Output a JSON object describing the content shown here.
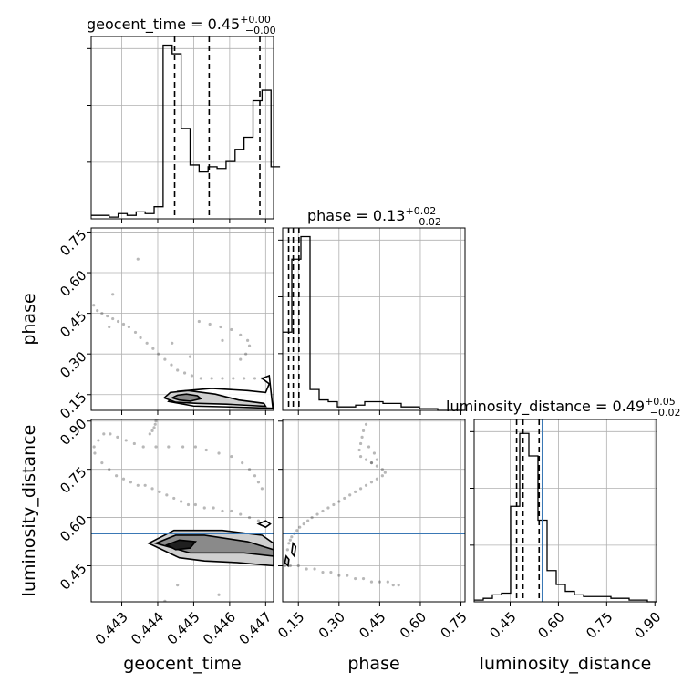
{
  "chart_data": {
    "type": "corner",
    "parameters": [
      "geocent_time",
      "phase",
      "luminosity_distance"
    ],
    "titles": [
      {
        "name": "geocent_time",
        "value": "0.45",
        "plus": "+0.00",
        "minus": "−0.00"
      },
      {
        "name": "phase",
        "value": "0.13",
        "plus": "+0.02",
        "minus": "−0.02"
      },
      {
        "name": "luminosity_distance",
        "value": "0.49",
        "plus": "+0.05",
        "minus": "−0.02"
      }
    ],
    "axis_labels": {
      "geocent_time": "geocent_time",
      "phase": "phase",
      "luminosity_distance": "luminosity_distance"
    },
    "ranges": {
      "geocent_time": [
        0.44215,
        0.44722
      ],
      "phase": [
        0.092,
        0.765
      ],
      "luminosity_distance": [
        0.338,
        0.905
      ]
    },
    "ticks": {
      "geocent_time": [
        "0.443",
        "0.444",
        "0.445",
        "0.446",
        "0.447"
      ],
      "phase": [
        "0.15",
        "0.30",
        "0.45",
        "0.60",
        "0.75"
      ],
      "luminosity_distance": [
        "0.45",
        "0.60",
        "0.75",
        "0.90"
      ]
    },
    "grid": true,
    "truth": {
      "luminosity_distance": 0.55
    },
    "histograms": {
      "geocent_time": {
        "edges": [
          0.44215,
          0.4474
        ],
        "counts": [
          0.02,
          0.02,
          0.01,
          0.03,
          0.02,
          0.04,
          0.03,
          0.07,
          1.0,
          0.95,
          0.52,
          0.31,
          0.27,
          0.3,
          0.29,
          0.33,
          0.4,
          0.47,
          0.68,
          0.74,
          0.3
        ],
        "quantile_lines": [
          0.44447,
          0.44543,
          0.44684
        ]
      },
      "phase": {
        "edges": [
          0.092,
          0.765
        ],
        "counts": [
          0.45,
          0.87,
          1.0,
          0.12,
          0.06,
          0.05,
          0.02,
          0.02,
          0.03,
          0.05,
          0.05,
          0.04,
          0.04,
          0.02,
          0.02,
          0.01,
          0.01,
          0.0,
          0.0,
          0.0
        ],
        "quantile_lines": [
          0.114,
          0.131,
          0.152
        ]
      },
      "luminosity_distance": {
        "edges": [
          0.338,
          0.905
        ],
        "counts": [
          0.01,
          0.02,
          0.04,
          0.05,
          0.55,
          0.97,
          0.84,
          0.47,
          0.18,
          0.1,
          0.06,
          0.04,
          0.03,
          0.03,
          0.03,
          0.02,
          0.02,
          0.01,
          0.01,
          0.0
        ],
        "quantile_lines": [
          0.47,
          0.49,
          0.54
        ]
      }
    },
    "samples": {
      "phase_vs_geocent_time": [
        [
          0.44222,
          0.48
        ],
        [
          0.44232,
          0.46
        ],
        [
          0.44245,
          0.45
        ],
        [
          0.4426,
          0.44
        ],
        [
          0.44275,
          0.43
        ],
        [
          0.4429,
          0.42
        ],
        [
          0.44305,
          0.41
        ],
        [
          0.4432,
          0.4
        ],
        [
          0.44338,
          0.38
        ],
        [
          0.44352,
          0.36
        ],
        [
          0.4437,
          0.34
        ],
        [
          0.44387,
          0.32
        ],
        [
          0.44402,
          0.3
        ],
        [
          0.4442,
          0.28
        ],
        [
          0.44438,
          0.26
        ],
        [
          0.44455,
          0.24
        ],
        [
          0.44475,
          0.23
        ],
        [
          0.44495,
          0.22
        ],
        [
          0.4452,
          0.21
        ],
        [
          0.4455,
          0.21
        ],
        [
          0.4458,
          0.21
        ],
        [
          0.4461,
          0.21
        ],
        [
          0.4464,
          0.21
        ],
        [
          0.4467,
          0.21
        ],
        [
          0.4469,
          0.21
        ],
        [
          0.44515,
          0.42
        ],
        [
          0.44545,
          0.41
        ],
        [
          0.44575,
          0.4
        ],
        [
          0.44605,
          0.39
        ],
        [
          0.4463,
          0.37
        ],
        [
          0.4465,
          0.35
        ],
        [
          0.44655,
          0.33
        ],
        [
          0.44645,
          0.3
        ],
        [
          0.4463,
          0.28
        ],
        [
          0.4458,
          0.35
        ],
        [
          0.44275,
          0.52
        ],
        [
          0.44345,
          0.65
        ],
        [
          0.44265,
          0.4
        ],
        [
          0.4444,
          0.34
        ],
        [
          0.4449,
          0.29
        ]
      ],
      "luminosity_distance_vs_geocent_time": [
        [
          0.44225,
          0.8
        ],
        [
          0.44245,
          0.77
        ],
        [
          0.44265,
          0.75
        ],
        [
          0.44285,
          0.73
        ],
        [
          0.44305,
          0.72
        ],
        [
          0.44325,
          0.71
        ],
        [
          0.44345,
          0.7
        ],
        [
          0.44365,
          0.7
        ],
        [
          0.44385,
          0.69
        ],
        [
          0.44405,
          0.68
        ],
        [
          0.44425,
          0.67
        ],
        [
          0.44445,
          0.66
        ],
        [
          0.44465,
          0.65
        ],
        [
          0.44485,
          0.64
        ],
        [
          0.44505,
          0.64
        ],
        [
          0.4453,
          0.63
        ],
        [
          0.44555,
          0.63
        ],
        [
          0.4458,
          0.62
        ],
        [
          0.44605,
          0.62
        ],
        [
          0.4463,
          0.61
        ],
        [
          0.44655,
          0.6
        ],
        [
          0.4468,
          0.59
        ],
        [
          0.447,
          0.58
        ],
        [
          0.44223,
          0.82
        ],
        [
          0.44235,
          0.84
        ],
        [
          0.4425,
          0.86
        ],
        [
          0.44268,
          0.86
        ],
        [
          0.44288,
          0.85
        ],
        [
          0.44312,
          0.84
        ],
        [
          0.44335,
          0.83
        ],
        [
          0.4436,
          0.82
        ],
        [
          0.44395,
          0.82
        ],
        [
          0.4443,
          0.82
        ],
        [
          0.4447,
          0.82
        ],
        [
          0.44505,
          0.82
        ],
        [
          0.44535,
          0.81
        ],
        [
          0.4457,
          0.8
        ],
        [
          0.44605,
          0.79
        ],
        [
          0.44635,
          0.77
        ],
        [
          0.44655,
          0.75
        ],
        [
          0.4467,
          0.73
        ],
        [
          0.4468,
          0.71
        ],
        [
          0.4469,
          0.69
        ],
        [
          0.44378,
          0.86
        ],
        [
          0.44385,
          0.87
        ],
        [
          0.4439,
          0.88
        ],
        [
          0.44393,
          0.89
        ],
        [
          0.44395,
          0.9
        ],
        [
          0.44238,
          0.92
        ],
        [
          0.44228,
          0.93
        ],
        [
          0.4442,
          0.34
        ],
        [
          0.44455,
          0.39
        ],
        [
          0.4457,
          0.36
        ]
      ],
      "luminosity_distance_vs_phase": [
        [
          0.1,
          0.45
        ],
        [
          0.105,
          0.47
        ],
        [
          0.11,
          0.5
        ],
        [
          0.115,
          0.52
        ],
        [
          0.12,
          0.53
        ],
        [
          0.125,
          0.54
        ],
        [
          0.135,
          0.55
        ],
        [
          0.145,
          0.56
        ],
        [
          0.155,
          0.57
        ],
        [
          0.17,
          0.58
        ],
        [
          0.185,
          0.59
        ],
        [
          0.2,
          0.6
        ],
        [
          0.22,
          0.61
        ],
        [
          0.24,
          0.62
        ],
        [
          0.26,
          0.63
        ],
        [
          0.28,
          0.64
        ],
        [
          0.3,
          0.65
        ],
        [
          0.32,
          0.66
        ],
        [
          0.34,
          0.67
        ],
        [
          0.36,
          0.68
        ],
        [
          0.38,
          0.69
        ],
        [
          0.4,
          0.7
        ],
        [
          0.42,
          0.71
        ],
        [
          0.44,
          0.72
        ],
        [
          0.46,
          0.73
        ],
        [
          0.47,
          0.74
        ],
        [
          0.46,
          0.75
        ],
        [
          0.44,
          0.76
        ],
        [
          0.42,
          0.77
        ],
        [
          0.4,
          0.78
        ],
        [
          0.38,
          0.79
        ],
        [
          0.375,
          0.81
        ],
        [
          0.38,
          0.83
        ],
        [
          0.385,
          0.85
        ],
        [
          0.39,
          0.87
        ],
        [
          0.4,
          0.89
        ],
        [
          0.42,
          0.77
        ],
        [
          0.44,
          0.78
        ],
        [
          0.43,
          0.8
        ],
        [
          0.41,
          0.82
        ],
        [
          0.12,
          0.45
        ],
        [
          0.15,
          0.45
        ],
        [
          0.18,
          0.44
        ],
        [
          0.21,
          0.44
        ],
        [
          0.24,
          0.43
        ],
        [
          0.27,
          0.43
        ],
        [
          0.3,
          0.42
        ],
        [
          0.33,
          0.42
        ],
        [
          0.36,
          0.41
        ],
        [
          0.39,
          0.41
        ],
        [
          0.42,
          0.4
        ],
        [
          0.45,
          0.4
        ],
        [
          0.48,
          0.4
        ],
        [
          0.5,
          0.39
        ],
        [
          0.52,
          0.39
        ]
      ]
    },
    "contours": {
      "phase_vs_geocent_time": [
        [
          [
            0.4444,
            0.138
          ],
          [
            0.44455,
            0.148
          ],
          [
            0.4448,
            0.152
          ],
          [
            0.4451,
            0.146
          ],
          [
            0.4452,
            0.135
          ],
          [
            0.4449,
            0.126
          ],
          [
            0.4446,
            0.13
          ],
          [
            0.4444,
            0.138
          ]
        ],
        [
          [
            0.44418,
            0.138
          ],
          [
            0.44435,
            0.158
          ],
          [
            0.44485,
            0.165
          ],
          [
            0.4456,
            0.152
          ],
          [
            0.44625,
            0.13
          ],
          [
            0.44695,
            0.118
          ],
          [
            0.447,
            0.107
          ],
          [
            0.4459,
            0.115
          ],
          [
            0.4451,
            0.118
          ],
          [
            0.4445,
            0.122
          ],
          [
            0.44418,
            0.138
          ]
        ],
        [
          [
            0.4443,
            0.125
          ],
          [
            0.44455,
            0.162
          ],
          [
            0.4455,
            0.173
          ],
          [
            0.4465,
            0.165
          ],
          [
            0.447,
            0.158
          ],
          [
            0.4471,
            0.19
          ],
          [
            0.4469,
            0.21
          ],
          [
            0.4471,
            0.22
          ],
          [
            0.4472,
            0.1
          ],
          [
            0.4459,
            0.105
          ],
          [
            0.445,
            0.108
          ],
          [
            0.4443,
            0.125
          ]
        ]
      ],
      "luminosity_distance_vs_geocent_time": [
        [
          [
            0.44425,
            0.515
          ],
          [
            0.4446,
            0.53
          ],
          [
            0.44505,
            0.525
          ],
          [
            0.4449,
            0.505
          ],
          [
            0.4445,
            0.5
          ],
          [
            0.44425,
            0.515
          ]
        ],
        [
          [
            0.44395,
            0.52
          ],
          [
            0.4445,
            0.545
          ],
          [
            0.4453,
            0.545
          ],
          [
            0.4465,
            0.525
          ],
          [
            0.44722,
            0.5
          ],
          [
            0.44722,
            0.48
          ],
          [
            0.4464,
            0.49
          ],
          [
            0.4456,
            0.49
          ],
          [
            0.4449,
            0.49
          ],
          [
            0.44395,
            0.52
          ]
        ],
        [
          [
            0.44375,
            0.52
          ],
          [
            0.44445,
            0.56
          ],
          [
            0.4458,
            0.56
          ],
          [
            0.4469,
            0.545
          ],
          [
            0.44722,
            0.52
          ],
          [
            0.44722,
            0.45
          ],
          [
            0.4462,
            0.46
          ],
          [
            0.4453,
            0.465
          ],
          [
            0.4446,
            0.475
          ],
          [
            0.44375,
            0.52
          ]
        ],
        [
          [
            0.4468,
            0.58
          ],
          [
            0.447,
            0.59
          ],
          [
            0.44713,
            0.58
          ],
          [
            0.447,
            0.57
          ],
          [
            0.4468,
            0.58
          ]
        ]
      ],
      "luminosity_distance_vs_phase": [
        [
          [
            0.1,
            0.46
          ],
          [
            0.105,
            0.48
          ],
          [
            0.115,
            0.47
          ],
          [
            0.112,
            0.45
          ],
          [
            0.1,
            0.46
          ]
        ],
        [
          [
            0.125,
            0.49
          ],
          [
            0.13,
            0.52
          ],
          [
            0.14,
            0.51
          ],
          [
            0.135,
            0.48
          ],
          [
            0.125,
            0.49
          ]
        ]
      ]
    }
  }
}
